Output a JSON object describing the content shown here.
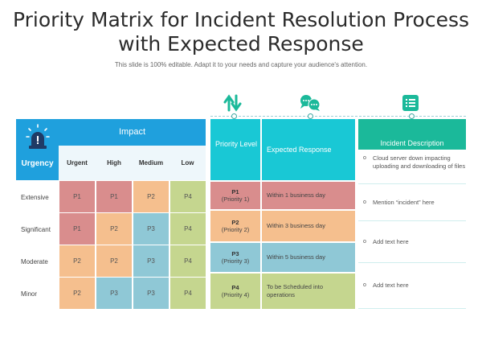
{
  "title_line1": "Priority Matrix for Incident Resolution Process",
  "title_line2": "with Expected Response",
  "subtitle": "This slide is 100% editable. Adapt it to your needs and capture your audience's attention.",
  "matrix": {
    "urgency_label": "Urgency",
    "impact_label": "Impact",
    "columns": [
      "Urgent",
      "High",
      "Medium",
      "Low"
    ],
    "rows": [
      {
        "label": "Extensive",
        "cells": [
          "P1",
          "P1",
          "P2",
          "P4"
        ]
      },
      {
        "label": "Significant",
        "cells": [
          "P1",
          "P2",
          "P3",
          "P4"
        ]
      },
      {
        "label": "Moderate",
        "cells": [
          "P2",
          "P2",
          "P3",
          "P4"
        ]
      },
      {
        "label": "Minor",
        "cells": [
          "P2",
          "P3",
          "P3",
          "P4"
        ]
      }
    ]
  },
  "priority_table": {
    "header_level": "Priority Level",
    "header_response": "Expected Response",
    "rows": [
      {
        "code": "P1",
        "name": "(Priority 1)",
        "response": "Within 1 business day"
      },
      {
        "code": "P2",
        "name": "(Priority 2)",
        "response": "Within 3 business day"
      },
      {
        "code": "P3",
        "name": "(Priority 3)",
        "response": "Within 5 business day"
      },
      {
        "code": "P4",
        "name": "(Priority 4)",
        "response": "To be Scheduled into operations"
      }
    ]
  },
  "description": {
    "header": "Incident Description",
    "bullet": "o",
    "items": [
      "Cloud server down impacting uploading and downloading of files",
      "Mention “incident” here",
      "Add text here",
      "Add text here"
    ]
  },
  "colors": {
    "p1": "#d98d8d",
    "p2": "#f5bf8e",
    "p3": "#8fc8d6",
    "p4": "#c5d68f",
    "matrix_header": "#1fa0dd",
    "priority_header": "#19c8d5",
    "description_header": "#1bb99a"
  },
  "icons": [
    "alarm-icon",
    "sort-arrows-icon",
    "chat-bubbles-icon",
    "list-icon"
  ]
}
